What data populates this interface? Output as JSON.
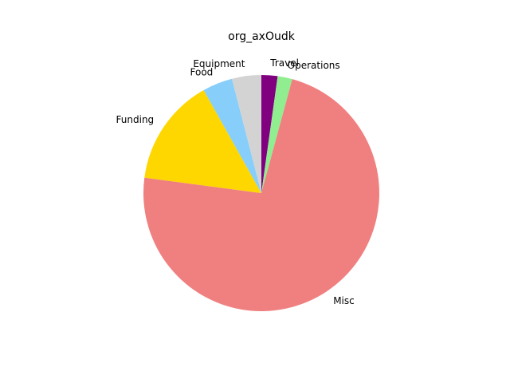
{
  "chart_data": {
    "type": "pie",
    "title": "org_axOudk",
    "labels": [
      "Travel",
      "Operations",
      "Misc",
      "Funding",
      "Food",
      "Equipment"
    ],
    "values": [
      2.2,
      2.0,
      72.5,
      14.7,
      4.1,
      4.0
    ],
    "colors": [
      "#800080",
      "#90ee90",
      "#f08080",
      "#ffd700",
      "#87cefa",
      "#d3d3d3"
    ],
    "start_angle_deg": 90,
    "direction": "clockwise",
    "legend": "none",
    "grid": false
  }
}
